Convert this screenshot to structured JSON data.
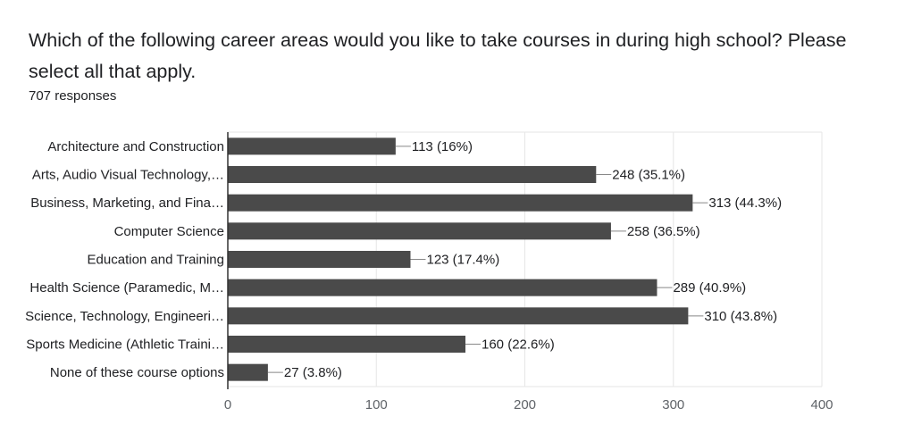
{
  "question": {
    "title": "Which of the following career areas would you like to take courses in during high school? Please select all that apply.",
    "responses": "707 responses"
  },
  "colors": {
    "bar": "#4a4a4a",
    "grid": "#e6e6e6",
    "axis": "#333333",
    "leader": "#888888"
  },
  "chart_data": {
    "type": "bar",
    "orientation": "horizontal",
    "categories": [
      "Architecture and Construction",
      "Arts, Audio Visual Technology,…",
      "Business, Marketing, and Fina…",
      "Computer Science",
      "Education and Training",
      "Health Science (Paramedic, M…",
      "Science, Technology, Engineeri…",
      "Sports Medicine (Athletic Traini…",
      "None of these course options"
    ],
    "values": [
      113,
      248,
      313,
      258,
      123,
      289,
      310,
      160,
      27
    ],
    "data_labels": [
      "113 (16%)",
      "248 (35.1%)",
      "313 (44.3%)",
      "258 (36.5%)",
      "123 (17.4%)",
      "289 (40.9%)",
      "310 (43.8%)",
      "160 (22.6%)",
      "27 (3.8%)"
    ],
    "xlim": [
      0,
      400
    ],
    "xticks": [
      0,
      100,
      200,
      300,
      400
    ],
    "grid": true,
    "legend": "none"
  }
}
